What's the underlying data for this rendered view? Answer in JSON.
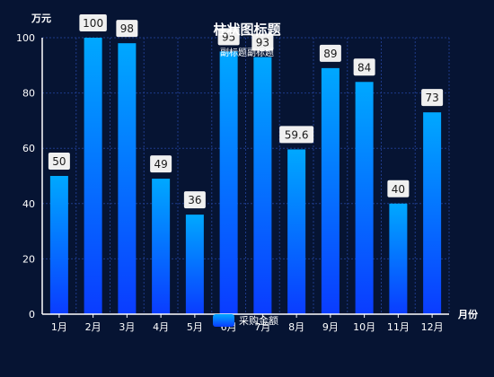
{
  "chart_data": {
    "type": "bar",
    "title": "柱状图标题",
    "subtitle": "副标题副标题",
    "ylabel": "万元",
    "xlabel": "月份",
    "categories": [
      "1月",
      "2月",
      "3月",
      "4月",
      "5月",
      "6月",
      "7月",
      "8月",
      "9月",
      "10月",
      "11月",
      "12月"
    ],
    "series": [
      {
        "name": "采购金额",
        "values": [
          50,
          100,
          98,
          49,
          36,
          95,
          93,
          59.6,
          89,
          84,
          40,
          73
        ]
      }
    ],
    "ylim": [
      0,
      100
    ],
    "yticks": [
      0,
      20,
      40,
      60,
      80,
      100
    ],
    "grid": true,
    "legend_position": "bottom-center",
    "colors": {
      "background": "#061433",
      "bar_top": "#00a8ff",
      "bar_bottom": "#0a3cff",
      "grid": "#1e3a8a",
      "label_bg": "#f0f0f0"
    }
  }
}
